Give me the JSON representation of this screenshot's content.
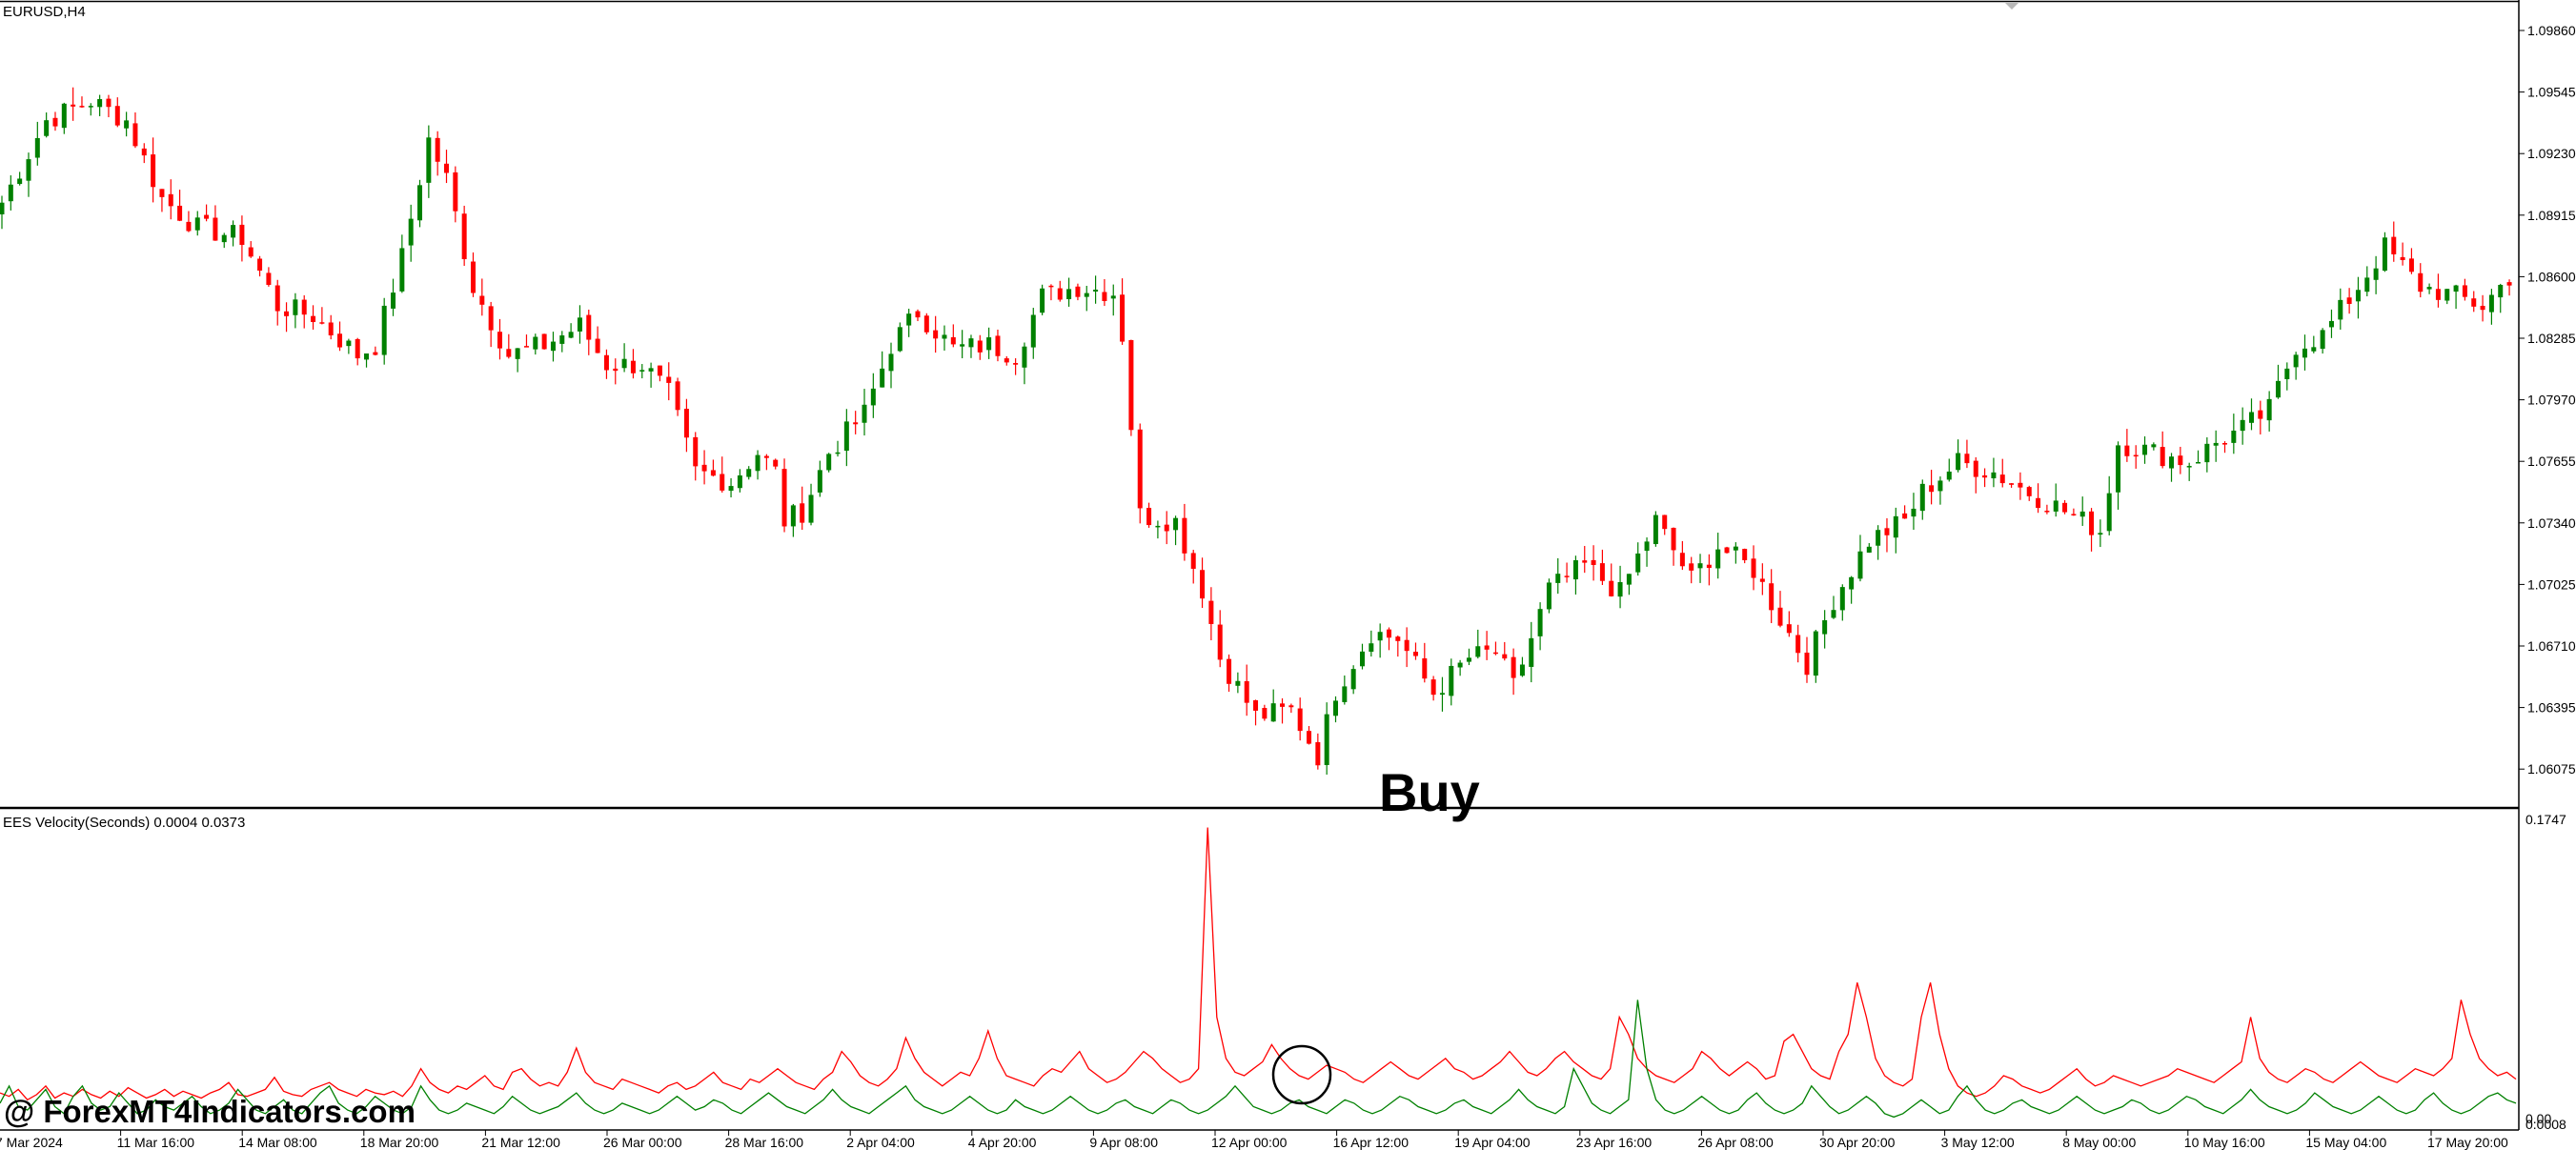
{
  "window": {
    "title": "EURUSD,H4"
  },
  "annotation": {
    "text": "Buy"
  },
  "watermark": {
    "text": "@ ForexMT4Indicators.com"
  },
  "colors": {
    "bull": "#008000",
    "bear": "#ff0000",
    "grid_border": "#000000"
  },
  "chart_data": [
    {
      "type": "candlestick",
      "title": "EURUSD,H4",
      "ylim": [
        1.0592,
        1.0995
      ],
      "y_ticks": [
        "1.09860",
        "1.09545",
        "1.09230",
        "1.08915",
        "1.08600",
        "1.08285",
        "1.07970",
        "1.07655",
        "1.07340",
        "1.07025",
        "1.06710",
        "1.06395",
        "1.06075"
      ],
      "x_ticks": [
        "7 Mar 2024",
        "11 Mar 16:00",
        "14 Mar 08:00",
        "18 Mar 20:00",
        "21 Mar 12:00",
        "26 Mar 00:00",
        "28 Mar 16:00",
        "2 Apr 04:00",
        "4 Apr 20:00",
        "9 Apr 08:00",
        "12 Apr 00:00",
        "16 Apr 12:00",
        "19 Apr 04:00",
        "23 Apr 16:00",
        "26 Apr 08:00",
        "30 Apr 20:00",
        "3 May 12:00",
        "8 May 00:00",
        "10 May 16:00",
        "15 May 04:00",
        "17 May 20:00"
      ],
      "close_path": [
        [
          0,
          1.0898
        ],
        [
          5,
          1.094
        ],
        [
          10,
          1.095
        ],
        [
          14,
          1.094
        ],
        [
          18,
          1.09
        ],
        [
          22,
          1.0885
        ],
        [
          27,
          1.088
        ],
        [
          31,
          1.0845
        ],
        [
          35,
          1.084
        ],
        [
          40,
          1.082
        ],
        [
          42,
          1.0825
        ],
        [
          45,
          1.087
        ],
        [
          48,
          1.093
        ],
        [
          50,
          1.091
        ],
        [
          53,
          1.0855
        ],
        [
          57,
          1.082
        ],
        [
          61,
          1.0825
        ],
        [
          65,
          1.0835
        ],
        [
          68,
          1.0815
        ],
        [
          72,
          1.0815
        ],
        [
          75,
          1.08
        ],
        [
          78,
          1.076
        ],
        [
          82,
          1.0755
        ],
        [
          85,
          1.077
        ],
        [
          87,
          1.076
        ],
        [
          88,
          1.0735
        ],
        [
          90,
          1.074
        ],
        [
          93,
          1.077
        ],
        [
          97,
          1.079
        ],
        [
          100,
          1.0825
        ],
        [
          103,
          1.0842
        ],
        [
          107,
          1.0823
        ],
        [
          111,
          1.0825
        ],
        [
          114,
          1.082
        ],
        [
          117,
          1.085
        ],
        [
          121,
          1.0855
        ],
        [
          125,
          1.0852
        ],
        [
          126,
          1.083
        ],
        [
          128,
          1.0738
        ],
        [
          132,
          1.0735
        ],
        [
          135,
          1.07
        ],
        [
          137,
          1.0665
        ],
        [
          141,
          1.0635
        ],
        [
          145,
          1.0638
        ],
        [
          148,
          1.0615
        ],
        [
          150,
          1.0648
        ],
        [
          154,
          1.0678
        ],
        [
          157,
          1.0675
        ],
        [
          161,
          1.0647
        ],
        [
          165,
          1.0665
        ],
        [
          168,
          1.0668
        ],
        [
          170,
          1.065
        ],
        [
          174,
          1.07
        ],
        [
          178,
          1.0712
        ],
        [
          182,
          1.0698
        ],
        [
          186,
          1.0735
        ],
        [
          190,
          1.0705
        ],
        [
          193,
          1.0722
        ],
        [
          197,
          1.071
        ],
        [
          200,
          1.0685
        ],
        [
          203,
          1.0662
        ],
        [
          206,
          1.0695
        ],
        [
          210,
          1.0725
        ],
        [
          214,
          1.0735
        ],
        [
          216,
          1.075
        ],
        [
          220,
          1.0765
        ],
        [
          224,
          1.076
        ],
        [
          227,
          1.0752
        ],
        [
          230,
          1.0745
        ],
        [
          234,
          1.0735
        ],
        [
          236,
          1.073
        ],
        [
          238,
          1.0775
        ],
        [
          242,
          1.077
        ],
        [
          246,
          1.0765
        ],
        [
          249,
          1.0775
        ],
        [
          252,
          1.0782
        ],
        [
          255,
          1.0792
        ],
        [
          258,
          1.0825
        ],
        [
          261,
          1.083
        ],
        [
          265,
          1.0855
        ],
        [
          268,
          1.0875
        ],
        [
          272,
          1.0855
        ],
        [
          276,
          1.085
        ],
        [
          279,
          1.0845
        ],
        [
          282,
          1.086
        ]
      ]
    },
    {
      "type": "line",
      "title": "EES Velocity(Seconds) 0.0004 0.0373",
      "ylim": [
        0,
        0.1747
      ],
      "y_ticks": [
        "0.1747",
        "0.00",
        "0.0008"
      ],
      "series": [
        {
          "color": "#ff0000",
          "values": [
            0.016,
            0.014,
            0.018,
            0.012,
            0.015,
            0.02,
            0.013,
            0.016,
            0.014,
            0.018,
            0.015,
            0.013,
            0.017,
            0.014,
            0.019,
            0.016,
            0.013,
            0.015,
            0.018,
            0.014,
            0.017,
            0.015,
            0.013,
            0.016,
            0.018,
            0.022,
            0.015,
            0.014,
            0.016,
            0.018,
            0.025,
            0.017,
            0.015,
            0.014,
            0.018,
            0.02,
            0.022,
            0.018,
            0.016,
            0.014,
            0.018,
            0.016,
            0.015,
            0.017,
            0.014,
            0.02,
            0.03,
            0.022,
            0.018,
            0.016,
            0.02,
            0.018,
            0.022,
            0.026,
            0.02,
            0.018,
            0.028,
            0.03,
            0.024,
            0.02,
            0.022,
            0.02,
            0.028,
            0.042,
            0.028,
            0.022,
            0.02,
            0.018,
            0.024,
            0.022,
            0.02,
            0.018,
            0.016,
            0.02,
            0.022,
            0.018,
            0.02,
            0.024,
            0.028,
            0.022,
            0.02,
            0.018,
            0.024,
            0.022,
            0.026,
            0.03,
            0.026,
            0.022,
            0.02,
            0.018,
            0.024,
            0.028,
            0.04,
            0.034,
            0.026,
            0.022,
            0.02,
            0.024,
            0.03,
            0.048,
            0.036,
            0.028,
            0.024,
            0.02,
            0.024,
            0.028,
            0.026,
            0.036,
            0.052,
            0.036,
            0.026,
            0.024,
            0.022,
            0.02,
            0.026,
            0.03,
            0.028,
            0.034,
            0.04,
            0.03,
            0.026,
            0.022,
            0.024,
            0.028,
            0.034,
            0.04,
            0.036,
            0.03,
            0.026,
            0.022,
            0.024,
            0.03,
            0.17,
            0.06,
            0.036,
            0.028,
            0.026,
            0.03,
            0.034,
            0.044,
            0.036,
            0.03,
            0.026,
            0.024,
            0.028,
            0.032,
            0.03,
            0.028,
            0.024,
            0.022,
            0.026,
            0.03,
            0.034,
            0.03,
            0.026,
            0.024,
            0.028,
            0.032,
            0.036,
            0.03,
            0.028,
            0.024,
            0.026,
            0.03,
            0.034,
            0.04,
            0.034,
            0.028,
            0.026,
            0.03,
            0.036,
            0.04,
            0.034,
            0.03,
            0.026,
            0.024,
            0.03,
            0.06,
            0.05,
            0.036,
            0.03,
            0.026,
            0.024,
            0.022,
            0.026,
            0.03,
            0.04,
            0.036,
            0.03,
            0.026,
            0.03,
            0.034,
            0.03,
            0.024,
            0.026,
            0.046,
            0.05,
            0.04,
            0.03,
            0.026,
            0.024,
            0.04,
            0.05,
            0.08,
            0.06,
            0.036,
            0.026,
            0.022,
            0.02,
            0.024,
            0.06,
            0.08,
            0.05,
            0.03,
            0.02,
            0.016,
            0.014,
            0.016,
            0.02,
            0.026,
            0.024,
            0.02,
            0.018,
            0.016,
            0.018,
            0.022,
            0.026,
            0.03,
            0.024,
            0.02,
            0.022,
            0.026,
            0.024,
            0.022,
            0.02,
            0.022,
            0.024,
            0.026,
            0.03,
            0.028,
            0.026,
            0.024,
            0.022,
            0.026,
            0.03,
            0.034,
            0.06,
            0.036,
            0.028,
            0.024,
            0.022,
            0.026,
            0.03,
            0.028,
            0.024,
            0.022,
            0.026,
            0.03,
            0.034,
            0.03,
            0.026,
            0.024,
            0.022,
            0.026,
            0.03,
            0.028,
            0.026,
            0.03,
            0.036,
            0.07,
            0.05,
            0.036,
            0.03,
            0.026,
            0.028,
            0.024
          ]
        },
        {
          "color": "#008000",
          "values": [
            0.01,
            0.02,
            0.008,
            0.006,
            0.012,
            0.018,
            0.008,
            0.004,
            0.014,
            0.02,
            0.01,
            0.006,
            0.008,
            0.016,
            0.01,
            0.004,
            0.006,
            0.012,
            0.008,
            0.006,
            0.01,
            0.014,
            0.008,
            0.004,
            0.006,
            0.01,
            0.018,
            0.012,
            0.006,
            0.004,
            0.008,
            0.012,
            0.006,
            0.004,
            0.01,
            0.016,
            0.02,
            0.01,
            0.006,
            0.004,
            0.008,
            0.014,
            0.01,
            0.006,
            0.004,
            0.008,
            0.02,
            0.012,
            0.006,
            0.004,
            0.006,
            0.01,
            0.008,
            0.006,
            0.004,
            0.008,
            0.014,
            0.01,
            0.006,
            0.004,
            0.006,
            0.008,
            0.012,
            0.016,
            0.01,
            0.006,
            0.004,
            0.006,
            0.01,
            0.008,
            0.006,
            0.004,
            0.006,
            0.01,
            0.014,
            0.01,
            0.006,
            0.008,
            0.012,
            0.01,
            0.006,
            0.004,
            0.008,
            0.012,
            0.016,
            0.012,
            0.008,
            0.006,
            0.004,
            0.008,
            0.012,
            0.018,
            0.012,
            0.008,
            0.006,
            0.004,
            0.008,
            0.012,
            0.016,
            0.02,
            0.012,
            0.008,
            0.006,
            0.004,
            0.006,
            0.01,
            0.014,
            0.01,
            0.006,
            0.004,
            0.006,
            0.012,
            0.008,
            0.006,
            0.004,
            0.006,
            0.01,
            0.014,
            0.01,
            0.006,
            0.004,
            0.006,
            0.01,
            0.012,
            0.008,
            0.006,
            0.004,
            0.008,
            0.012,
            0.01,
            0.006,
            0.004,
            0.006,
            0.01,
            0.014,
            0.02,
            0.014,
            0.008,
            0.006,
            0.004,
            0.006,
            0.01,
            0.012,
            0.008,
            0.006,
            0.004,
            0.008,
            0.012,
            0.01,
            0.006,
            0.004,
            0.006,
            0.01,
            0.014,
            0.012,
            0.008,
            0.006,
            0.004,
            0.006,
            0.01,
            0.012,
            0.008,
            0.006,
            0.004,
            0.008,
            0.012,
            0.018,
            0.012,
            0.008,
            0.006,
            0.004,
            0.008,
            0.03,
            0.02,
            0.01,
            0.006,
            0.004,
            0.008,
            0.012,
            0.07,
            0.03,
            0.012,
            0.006,
            0.004,
            0.006,
            0.01,
            0.014,
            0.01,
            0.006,
            0.004,
            0.006,
            0.012,
            0.016,
            0.01,
            0.006,
            0.004,
            0.006,
            0.01,
            0.02,
            0.014,
            0.008,
            0.004,
            0.006,
            0.01,
            0.014,
            0.01,
            0.004,
            0.002,
            0.004,
            0.008,
            0.012,
            0.008,
            0.004,
            0.006,
            0.014,
            0.02,
            0.012,
            0.006,
            0.004,
            0.006,
            0.01,
            0.012,
            0.008,
            0.006,
            0.004,
            0.006,
            0.01,
            0.014,
            0.01,
            0.006,
            0.004,
            0.006,
            0.008,
            0.012,
            0.01,
            0.006,
            0.004,
            0.006,
            0.01,
            0.014,
            0.012,
            0.008,
            0.006,
            0.004,
            0.008,
            0.012,
            0.018,
            0.012,
            0.008,
            0.006,
            0.004,
            0.006,
            0.01,
            0.016,
            0.012,
            0.008,
            0.006,
            0.004,
            0.006,
            0.01,
            0.014,
            0.01,
            0.006,
            0.004,
            0.006,
            0.012,
            0.016,
            0.01,
            0.006,
            0.004,
            0.006,
            0.01,
            0.014,
            0.016,
            0.012,
            0.01
          ]
        }
      ]
    }
  ]
}
